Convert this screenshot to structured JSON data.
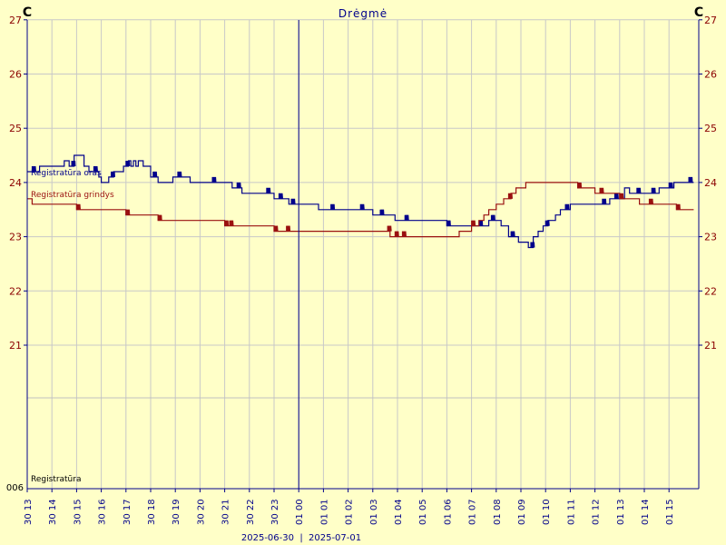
{
  "chart_data": {
    "type": "line",
    "title": "Drėgmė",
    "left_unit": "C",
    "right_unit": "C",
    "yticks": [
      21,
      22,
      23,
      24,
      25,
      26,
      27
    ],
    "ylim": [
      21,
      27
    ],
    "lower_panel_label": "Registratūra",
    "lower_panel_tick": "006",
    "x_tick_labels": [
      "30 13",
      "30 14",
      "30 15",
      "30 16",
      "30 17",
      "30 18",
      "30 19",
      "30 20",
      "30 21",
      "30 22",
      "30 23",
      "01 00",
      "01 01",
      "01 02",
      "01 03",
      "01 04",
      "01 05",
      "01 06",
      "01 07",
      "01 08",
      "01 09",
      "01 10",
      "01 11",
      "01 12",
      "01 13",
      "01 14",
      "01 15"
    ],
    "date_left": "2025-06-30",
    "date_separator": "|",
    "date_right": "2025-07-01",
    "x_hours": [
      13,
      14,
      15,
      16,
      17,
      18,
      19,
      20,
      21,
      22,
      23,
      24,
      25,
      26,
      27,
      28,
      29,
      30,
      31,
      32,
      33,
      34,
      35,
      36,
      37,
      38,
      39
    ],
    "series": [
      {
        "name": "Registratūra oras",
        "color": "#00008b",
        "points": [
          [
            13.0,
            24.2
          ],
          [
            13.5,
            24.2
          ],
          [
            13.5,
            24.3
          ],
          [
            14.5,
            24.3
          ],
          [
            14.5,
            24.4
          ],
          [
            14.7,
            24.4
          ],
          [
            14.7,
            24.3
          ],
          [
            14.9,
            24.3
          ],
          [
            14.9,
            24.5
          ],
          [
            15.3,
            24.5
          ],
          [
            15.3,
            24.3
          ],
          [
            15.5,
            24.3
          ],
          [
            15.5,
            24.2
          ],
          [
            15.9,
            24.2
          ],
          [
            15.9,
            24.1
          ],
          [
            16.0,
            24.1
          ],
          [
            16.0,
            24.0
          ],
          [
            16.3,
            24.0
          ],
          [
            16.3,
            24.1
          ],
          [
            16.5,
            24.1
          ],
          [
            16.5,
            24.2
          ],
          [
            16.9,
            24.2
          ],
          [
            16.9,
            24.3
          ],
          [
            17.1,
            24.3
          ],
          [
            17.1,
            24.4
          ],
          [
            17.2,
            24.4
          ],
          [
            17.2,
            24.3
          ],
          [
            17.3,
            24.3
          ],
          [
            17.3,
            24.4
          ],
          [
            17.4,
            24.4
          ],
          [
            17.4,
            24.3
          ],
          [
            17.5,
            24.3
          ],
          [
            17.5,
            24.4
          ],
          [
            17.7,
            24.4
          ],
          [
            17.7,
            24.3
          ],
          [
            18.0,
            24.3
          ],
          [
            18.0,
            24.1
          ],
          [
            18.3,
            24.1
          ],
          [
            18.3,
            24.0
          ],
          [
            18.9,
            24.0
          ],
          [
            18.9,
            24.1
          ],
          [
            19.6,
            24.1
          ],
          [
            19.6,
            24.0
          ],
          [
            21.3,
            24.0
          ],
          [
            21.3,
            23.9
          ],
          [
            21.7,
            23.9
          ],
          [
            21.7,
            23.8
          ],
          [
            23.0,
            23.8
          ],
          [
            23.0,
            23.7
          ],
          [
            23.6,
            23.7
          ],
          [
            23.6,
            23.6
          ],
          [
            24.8,
            23.6
          ],
          [
            24.8,
            23.5
          ],
          [
            27.0,
            23.5
          ],
          [
            27.0,
            23.4
          ],
          [
            27.9,
            23.4
          ],
          [
            27.9,
            23.3
          ],
          [
            30.0,
            23.3
          ],
          [
            30.0,
            23.2
          ],
          [
            31.7,
            23.2
          ],
          [
            31.7,
            23.3
          ],
          [
            32.2,
            23.3
          ],
          [
            32.2,
            23.2
          ],
          [
            32.5,
            23.2
          ],
          [
            32.5,
            23.0
          ],
          [
            32.9,
            23.0
          ],
          [
            32.9,
            22.9
          ],
          [
            33.3,
            22.9
          ],
          [
            33.3,
            22.8
          ],
          [
            33.5,
            22.8
          ],
          [
            33.5,
            23.0
          ],
          [
            33.7,
            23.0
          ],
          [
            33.7,
            23.1
          ],
          [
            33.9,
            23.1
          ],
          [
            33.9,
            23.2
          ],
          [
            34.1,
            23.2
          ],
          [
            34.1,
            23.3
          ],
          [
            34.4,
            23.3
          ],
          [
            34.4,
            23.4
          ],
          [
            34.6,
            23.4
          ],
          [
            34.6,
            23.5
          ],
          [
            35.0,
            23.5
          ],
          [
            35.0,
            23.6
          ],
          [
            36.6,
            23.6
          ],
          [
            36.6,
            23.7
          ],
          [
            37.2,
            23.7
          ],
          [
            37.2,
            23.9
          ],
          [
            37.4,
            23.9
          ],
          [
            37.4,
            23.8
          ],
          [
            38.6,
            23.8
          ],
          [
            38.6,
            23.9
          ],
          [
            39.2,
            23.9
          ],
          [
            39.2,
            24.0
          ],
          [
            40.0,
            24.0
          ]
        ],
        "noise_at": [
          13.2,
          14.8,
          15.7,
          16.4,
          17.0,
          18.1,
          19.1,
          20.5,
          21.5,
          22.7,
          23.2,
          23.7,
          25.3,
          26.5,
          27.3,
          28.3,
          30.0,
          31.3,
          31.8,
          32.6,
          33.4,
          34.0,
          34.8,
          36.3,
          36.8,
          37.7,
          38.3,
          39.0,
          39.8
        ]
      },
      {
        "name": "Registratūra grindys",
        "color": "#9a1010",
        "points": [
          [
            13.0,
            23.7
          ],
          [
            13.2,
            23.7
          ],
          [
            13.2,
            23.6
          ],
          [
            15.0,
            23.6
          ],
          [
            15.0,
            23.5
          ],
          [
            17.0,
            23.5
          ],
          [
            17.0,
            23.4
          ],
          [
            18.3,
            23.4
          ],
          [
            18.3,
            23.3
          ],
          [
            21.0,
            23.3
          ],
          [
            21.0,
            23.2
          ],
          [
            23.0,
            23.2
          ],
          [
            23.0,
            23.1
          ],
          [
            27.7,
            23.1
          ],
          [
            27.7,
            23.0
          ],
          [
            30.5,
            23.0
          ],
          [
            30.5,
            23.1
          ],
          [
            31.0,
            23.1
          ],
          [
            31.0,
            23.2
          ],
          [
            31.3,
            23.2
          ],
          [
            31.3,
            23.3
          ],
          [
            31.5,
            23.3
          ],
          [
            31.5,
            23.4
          ],
          [
            31.7,
            23.4
          ],
          [
            31.7,
            23.5
          ],
          [
            32.0,
            23.5
          ],
          [
            32.0,
            23.6
          ],
          [
            32.3,
            23.6
          ],
          [
            32.3,
            23.7
          ],
          [
            32.6,
            23.7
          ],
          [
            32.6,
            23.8
          ],
          [
            32.8,
            23.8
          ],
          [
            32.8,
            23.9
          ],
          [
            33.2,
            23.9
          ],
          [
            33.2,
            24.0
          ],
          [
            35.3,
            24.0
          ],
          [
            35.3,
            23.9
          ],
          [
            36.0,
            23.9
          ],
          [
            36.0,
            23.8
          ],
          [
            37.0,
            23.8
          ],
          [
            37.0,
            23.7
          ],
          [
            37.8,
            23.7
          ],
          [
            37.8,
            23.6
          ],
          [
            39.3,
            23.6
          ],
          [
            39.3,
            23.5
          ],
          [
            40.0,
            23.5
          ]
        ],
        "noise_at": [
          15.0,
          17.0,
          18.3,
          21.0,
          21.2,
          23.0,
          23.5,
          27.6,
          27.9,
          28.2,
          31.0,
          32.5,
          35.3,
          36.2,
          37.0,
          38.2,
          39.3
        ]
      }
    ]
  }
}
